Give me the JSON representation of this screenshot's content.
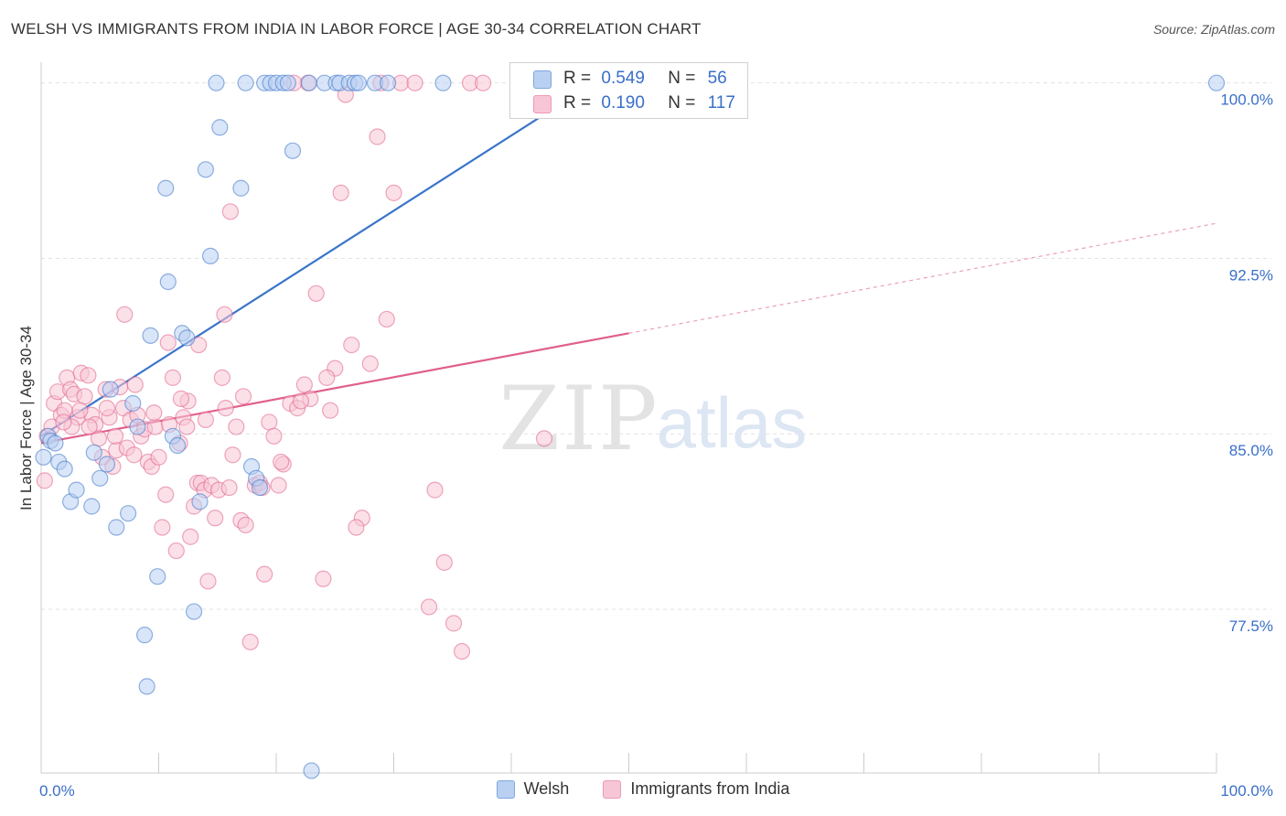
{
  "header": {
    "title": "WELSH VS IMMIGRANTS FROM INDIA IN LABOR FORCE | AGE 30-34 CORRELATION CHART",
    "source": "Source: ZipAtlas.com"
  },
  "watermark": {
    "zip": "ZIP",
    "atlas": "atlas"
  },
  "legend": {
    "items": [
      {
        "label": "Welsh",
        "fill": "#b9d0f2",
        "stroke": "#7fa6e0"
      },
      {
        "label": "Immigrants from India",
        "fill": "#f7c6d6",
        "stroke": "#ec9ab6"
      }
    ]
  },
  "stats": {
    "rows": [
      {
        "r_label": "R =",
        "r": "0.549",
        "n_label": "N =",
        "n": "56"
      },
      {
        "r_label": "R =",
        "r": "0.190",
        "n_label": "N =",
        "n": "117"
      }
    ]
  },
  "chart_data": {
    "type": "scatter",
    "title": "WELSH VS IMMIGRANTS FROM INDIA IN LABOR FORCE | AGE 30-34 CORRELATION CHART",
    "ylabel": "In Labor Force | Age 30-34",
    "xlabel": "",
    "xlim": [
      0,
      100
    ],
    "ylim": [
      70.5,
      101.2
    ],
    "x_tick_labels": [
      {
        "x": 0,
        "label": "0.0%"
      },
      {
        "x": 100,
        "label": "100.0%"
      }
    ],
    "y_ticks": [
      {
        "y": 100.0,
        "label": "100.0%"
      },
      {
        "y": 92.5,
        "label": "92.5%"
      },
      {
        "y": 85.0,
        "label": "85.0%"
      },
      {
        "y": 77.5,
        "label": "77.5%"
      }
    ],
    "grid": true,
    "legend_position": "bottom",
    "series": [
      {
        "name": "Welsh",
        "color": "#3a75c9",
        "fill": "#b9d0f2",
        "trend": {
          "x0": 0,
          "y0": 84.9,
          "x1": 47,
          "y1": 100.0,
          "dashed_to": 48
        },
        "points": [
          [
            0.2,
            84.0
          ],
          [
            0.6,
            84.9
          ],
          [
            0.8,
            84.7
          ],
          [
            1.2,
            84.6
          ],
          [
            1.5,
            83.8
          ],
          [
            2.0,
            83.5
          ],
          [
            2.5,
            82.1
          ],
          [
            3.0,
            82.6
          ],
          [
            4.3,
            81.9
          ],
          [
            4.5,
            84.2
          ],
          [
            5.0,
            83.1
          ],
          [
            5.6,
            83.7
          ],
          [
            5.9,
            86.9
          ],
          [
            6.4,
            81.0
          ],
          [
            7.4,
            81.6
          ],
          [
            7.8,
            86.3
          ],
          [
            8.2,
            85.3
          ],
          [
            8.8,
            76.4
          ],
          [
            9.0,
            74.2
          ],
          [
            9.3,
            89.2
          ],
          [
            9.9,
            78.9
          ],
          [
            10.6,
            95.5
          ],
          [
            10.8,
            91.5
          ],
          [
            11.2,
            84.9
          ],
          [
            11.6,
            84.5
          ],
          [
            12.0,
            89.3
          ],
          [
            12.4,
            89.1
          ],
          [
            13.0,
            77.4
          ],
          [
            13.5,
            82.1
          ],
          [
            14.0,
            96.3
          ],
          [
            14.4,
            92.6
          ],
          [
            14.9,
            100.0
          ],
          [
            15.2,
            98.1
          ],
          [
            17.0,
            95.5
          ],
          [
            17.4,
            100.0
          ],
          [
            17.9,
            83.6
          ],
          [
            18.3,
            83.1
          ],
          [
            18.6,
            82.7
          ],
          [
            19.0,
            100.0
          ],
          [
            19.5,
            100.0
          ],
          [
            20.0,
            100.0
          ],
          [
            20.6,
            100.0
          ],
          [
            21.0,
            100.0
          ],
          [
            21.4,
            97.1
          ],
          [
            22.8,
            100.0
          ],
          [
            23.0,
            70.6
          ],
          [
            24.1,
            100.0
          ],
          [
            25.1,
            100.0
          ],
          [
            25.4,
            100.0
          ],
          [
            26.2,
            100.0
          ],
          [
            26.7,
            100.0
          ],
          [
            27.0,
            100.0
          ],
          [
            28.4,
            100.0
          ],
          [
            29.5,
            100.0
          ],
          [
            34.2,
            100.0
          ],
          [
            100.0,
            100.0
          ]
        ]
      },
      {
        "name": "Immigrants from India",
        "color": "#e0608a",
        "fill": "#f7c6d6",
        "trend": {
          "x0": 0,
          "y0": 84.6,
          "x1": 50,
          "y1": 89.3,
          "dashed_to": 100
        },
        "points": [
          [
            0.3,
            83.0
          ],
          [
            0.5,
            84.9
          ],
          [
            0.9,
            85.3
          ],
          [
            1.1,
            86.3
          ],
          [
            1.4,
            86.8
          ],
          [
            1.7,
            85.8
          ],
          [
            2.0,
            86.0
          ],
          [
            2.2,
            87.4
          ],
          [
            2.5,
            86.9
          ],
          [
            2.8,
            86.7
          ],
          [
            3.1,
            85.7
          ],
          [
            3.4,
            87.6
          ],
          [
            3.7,
            86.6
          ],
          [
            4.0,
            87.5
          ],
          [
            4.3,
            85.8
          ],
          [
            4.6,
            85.4
          ],
          [
            4.9,
            84.8
          ],
          [
            5.2,
            84.0
          ],
          [
            5.5,
            86.9
          ],
          [
            5.8,
            85.7
          ],
          [
            6.1,
            83.6
          ],
          [
            6.4,
            84.3
          ],
          [
            6.7,
            87.0
          ],
          [
            7.0,
            86.1
          ],
          [
            7.3,
            84.4
          ],
          [
            7.6,
            85.6
          ],
          [
            7.9,
            84.1
          ],
          [
            8.2,
            85.8
          ],
          [
            8.5,
            84.9
          ],
          [
            8.8,
            85.2
          ],
          [
            9.1,
            83.8
          ],
          [
            9.4,
            83.6
          ],
          [
            9.7,
            85.3
          ],
          [
            10.0,
            84.0
          ],
          [
            10.3,
            81.0
          ],
          [
            10.6,
            82.4
          ],
          [
            10.9,
            85.4
          ],
          [
            11.2,
            87.4
          ],
          [
            11.5,
            80.0
          ],
          [
            11.8,
            84.6
          ],
          [
            12.1,
            85.7
          ],
          [
            12.4,
            85.3
          ],
          [
            12.7,
            80.6
          ],
          [
            13.0,
            81.9
          ],
          [
            13.3,
            82.9
          ],
          [
            13.6,
            82.9
          ],
          [
            13.9,
            82.6
          ],
          [
            14.2,
            78.7
          ],
          [
            14.5,
            82.8
          ],
          [
            14.8,
            81.4
          ],
          [
            15.1,
            82.6
          ],
          [
            15.4,
            87.4
          ],
          [
            15.7,
            86.1
          ],
          [
            16.0,
            82.7
          ],
          [
            16.3,
            84.1
          ],
          [
            16.6,
            85.3
          ],
          [
            17.0,
            81.3
          ],
          [
            17.4,
            81.1
          ],
          [
            17.8,
            76.1
          ],
          [
            18.2,
            82.8
          ],
          [
            18.6,
            82.9
          ],
          [
            19.0,
            79.0
          ],
          [
            19.4,
            85.5
          ],
          [
            19.8,
            84.9
          ],
          [
            20.2,
            82.8
          ],
          [
            20.6,
            83.7
          ],
          [
            21.2,
            86.3
          ],
          [
            21.8,
            86.1
          ],
          [
            22.4,
            87.1
          ],
          [
            22.9,
            86.5
          ],
          [
            23.4,
            91.0
          ],
          [
            24.0,
            78.8
          ],
          [
            24.6,
            86.0
          ],
          [
            25.0,
            87.8
          ],
          [
            25.5,
            95.3
          ],
          [
            25.9,
            99.5
          ],
          [
            26.4,
            88.8
          ],
          [
            27.3,
            81.4
          ],
          [
            28.0,
            88.0
          ],
          [
            28.6,
            97.7
          ],
          [
            29.4,
            89.9
          ],
          [
            30.0,
            95.3
          ],
          [
            30.6,
            100.0
          ],
          [
            33.0,
            77.6
          ],
          [
            33.5,
            82.6
          ],
          [
            34.3,
            79.5
          ],
          [
            35.1,
            76.9
          ],
          [
            35.8,
            75.7
          ],
          [
            36.5,
            100.0
          ],
          [
            37.6,
            100.0
          ],
          [
            9.6,
            85.9
          ],
          [
            10.8,
            88.9
          ],
          [
            12.5,
            86.4
          ],
          [
            14.0,
            85.6
          ],
          [
            15.6,
            90.1
          ],
          [
            18.8,
            82.7
          ],
          [
            17.2,
            86.6
          ],
          [
            16.1,
            94.5
          ],
          [
            13.4,
            88.8
          ],
          [
            11.9,
            86.5
          ],
          [
            20.4,
            83.8
          ],
          [
            22.1,
            86.4
          ],
          [
            24.3,
            87.4
          ],
          [
            7.1,
            90.1
          ],
          [
            8.0,
            87.1
          ],
          [
            6.3,
            84.9
          ],
          [
            5.6,
            86.1
          ],
          [
            4.1,
            85.3
          ],
          [
            3.3,
            86.0
          ],
          [
            2.6,
            85.3
          ],
          [
            1.9,
            85.5
          ],
          [
            26.8,
            81.0
          ],
          [
            28.9,
            100.0
          ],
          [
            31.8,
            100.0
          ],
          [
            22.7,
            100.0
          ],
          [
            21.5,
            100.0
          ],
          [
            42.8,
            84.8
          ]
        ]
      }
    ]
  }
}
